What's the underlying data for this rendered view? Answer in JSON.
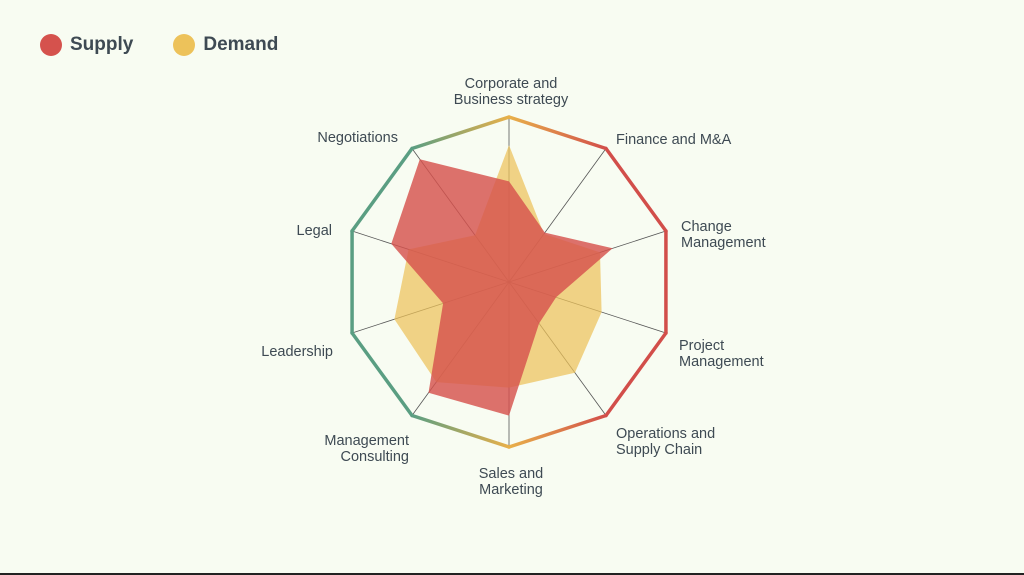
{
  "chart_data": {
    "type": "radar",
    "axes": [
      "Corporate and Business strategy",
      "Finance and M&A",
      "Change Management",
      "Project Management",
      "Operations and Supply Chain",
      "Sales and Marketing",
      "Management Consulting",
      "Leadership",
      "Legal",
      "Negotiations"
    ],
    "axis_label_lines": [
      [
        "Corporate and",
        "Business strategy"
      ],
      [
        "Finance and M&A"
      ],
      [
        "Change",
        "Management"
      ],
      [
        "Project",
        "Management"
      ],
      [
        "Operations and",
        "Supply Chain"
      ],
      [
        "Sales and",
        "Marketing"
      ],
      [
        "Management",
        "Consulting"
      ],
      [
        "Leadership"
      ],
      [
        "Legal"
      ],
      [
        "Negotiations"
      ]
    ],
    "range": [
      0,
      1
    ],
    "series": [
      {
        "name": "Demand",
        "color": "#edc25a",
        "values": [
          0.83,
          0.36,
          0.58,
          0.59,
          0.68,
          0.64,
          0.75,
          0.73,
          0.64,
          0.35
        ]
      },
      {
        "name": "Supply",
        "color": "#d5524d",
        "values": [
          0.61,
          0.37,
          0.66,
          0.3,
          0.31,
          0.81,
          0.83,
          0.42,
          0.75,
          0.92
        ]
      }
    ],
    "frame_colors": {
      "red": "#d24e4a",
      "amber": "#e8b04a",
      "green": "#5a9e82"
    }
  }
}
